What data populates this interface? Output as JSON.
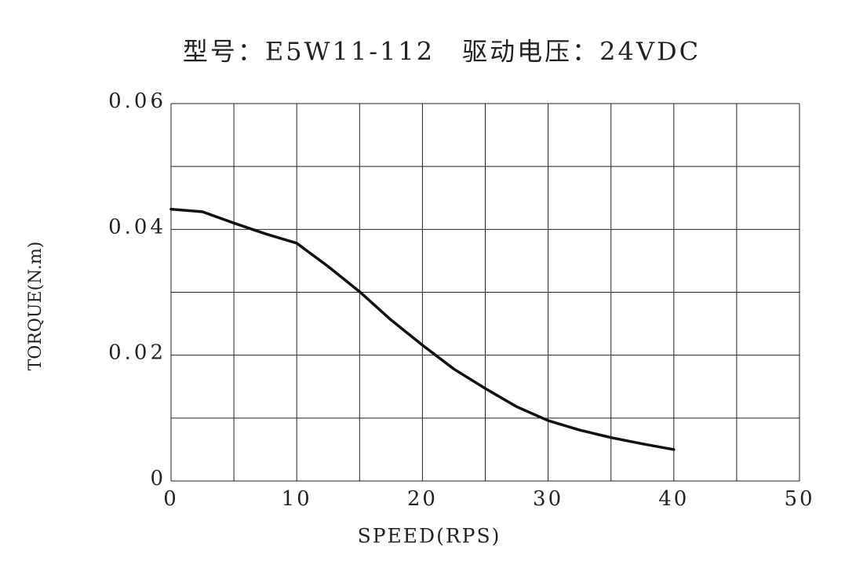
{
  "chart_data": {
    "type": "line",
    "title": "型号：E5W11-112　驱动电压：24VDC",
    "x_label": "SPEED(RPS)",
    "y_label": "TORQUE(N.m)",
    "x": [
      0,
      2.5,
      5,
      7.5,
      10,
      12.5,
      15,
      17.5,
      20,
      22.5,
      25,
      27.5,
      30,
      32.5,
      35,
      37.5,
      40
    ],
    "series": [
      {
        "color": "#111111",
        "values": [
          0.0432,
          0.0428,
          0.041,
          0.0393,
          0.0378,
          0.0341,
          0.0301,
          0.0256,
          0.0216,
          0.0178,
          0.0147,
          0.0118,
          0.0096,
          0.0081,
          0.0069,
          0.0059,
          0.005
        ]
      }
    ],
    "xlim": [
      0,
      50
    ],
    "ylim": [
      0,
      0.06
    ],
    "xticks": [
      0,
      10,
      20,
      30,
      40,
      50
    ],
    "yticks": [
      0,
      0.02,
      0.04,
      0.06
    ],
    "x_grid_lines": [
      0,
      5,
      10,
      15,
      20,
      25,
      30,
      35,
      40,
      45,
      50
    ],
    "y_grid_lines": [
      0,
      0.01,
      0.02,
      0.03,
      0.04,
      0.05,
      0.06
    ],
    "grid": true
  }
}
